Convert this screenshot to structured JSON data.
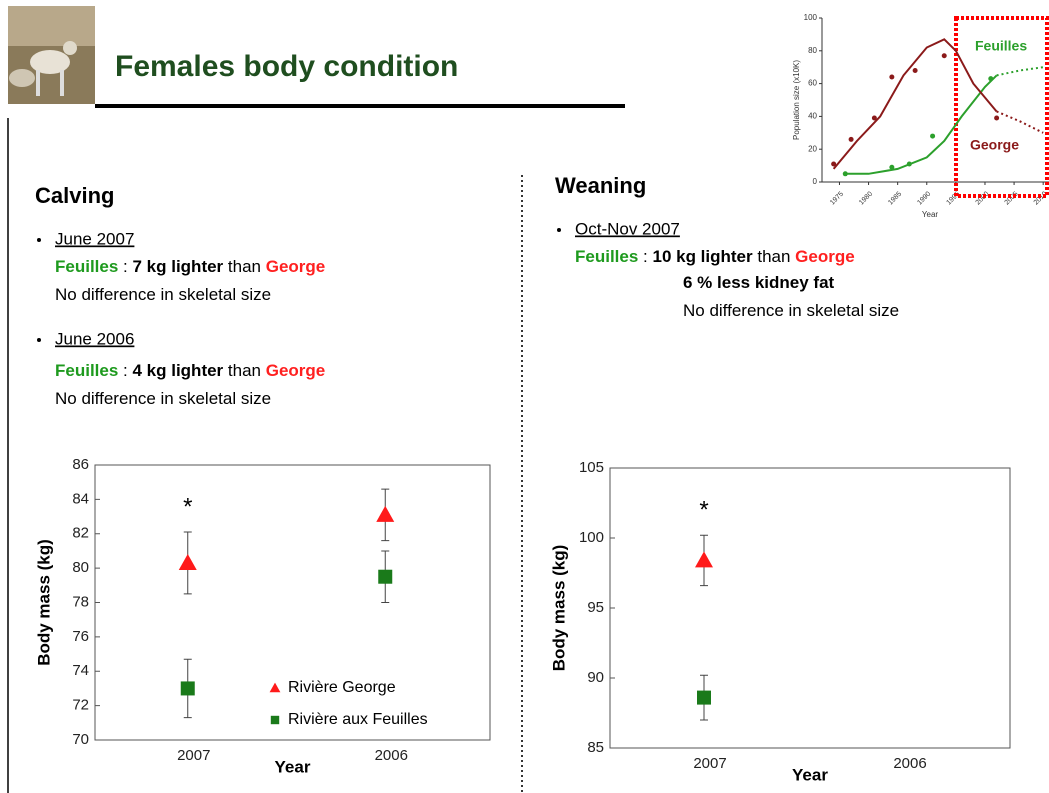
{
  "header": {
    "title": "Females body condition"
  },
  "calving": {
    "heading": "Calving",
    "items": [
      {
        "date": "June 2007",
        "lines": [
          [
            {
              "text": "Feuilles",
              "bold": true,
              "color": "#1e9a1e"
            },
            {
              "text": " : "
            },
            {
              "text": "7 kg lighter",
              "bold": true
            },
            {
              "text": " than "
            },
            {
              "text": "George",
              "bold": true,
              "color": "#ff2020"
            }
          ],
          [
            {
              "text": "No difference in skeletal size"
            }
          ]
        ]
      },
      {
        "date": "June 2006",
        "lines": [
          [
            {
              "text": "Feuilles",
              "bold": true,
              "color": "#1e9a1e"
            },
            {
              "text": " : "
            },
            {
              "text": "4 kg lighter",
              "bold": true
            },
            {
              "text": " than "
            },
            {
              "text": "George",
              "bold": true,
              "color": "#ff2020"
            }
          ],
          [
            {
              "text": "No difference in skeletal size"
            }
          ]
        ]
      }
    ]
  },
  "weaning": {
    "heading": "Weaning",
    "items": [
      {
        "date": "Oct-Nov 2007",
        "lines": [
          [
            {
              "text": "Feuilles",
              "bold": true,
              "color": "#1e9a1e"
            },
            {
              "text": " : "
            },
            {
              "text": "10 kg lighter",
              "bold": true
            },
            {
              "text": " than "
            },
            {
              "text": "George",
              "bold": true,
              "color": "#ff2020"
            }
          ],
          [
            {
              "text": "6 % less kidney fat",
              "bold": true
            }
          ],
          [
            {
              "text": "No difference in skeletal size"
            }
          ]
        ]
      }
    ]
  },
  "chart_data": [
    {
      "type": "line",
      "ylabel": "Population size (x10K)",
      "xlabel": "Year",
      "xlim": [
        1972,
        2011
      ],
      "ylim": [
        0,
        100
      ],
      "xticks": [
        1975,
        1980,
        1985,
        1990,
        1995,
        2000,
        2005,
        2010
      ],
      "yticks": [
        0,
        20,
        40,
        60,
        80,
        100
      ],
      "series": [
        {
          "name": "Feuilles",
          "color": "#2ca02c",
          "x": [
            1976,
            1980,
            1985,
            1990,
            1993,
            1996,
            2000,
            2002
          ],
          "values": [
            5,
            5,
            8,
            15,
            25,
            40,
            58,
            65
          ],
          "projection_x": [
            2002,
            2006,
            2010
          ],
          "projection": [
            65,
            68,
            70
          ],
          "points_x": [
            1976,
            1984,
            1987,
            1991,
            2001
          ],
          "points": [
            5,
            9,
            11,
            28,
            63
          ]
        },
        {
          "name": "George",
          "color": "#8b1a1a",
          "x": [
            1974,
            1978,
            1982,
            1986,
            1990,
            1993,
            1995,
            1998,
            2002
          ],
          "values": [
            8,
            25,
            40,
            65,
            82,
            87,
            80,
            60,
            43
          ],
          "projection_x": [
            2002,
            2006,
            2010
          ],
          "projection": [
            43,
            37,
            30
          ],
          "points_x": [
            1974,
            1977,
            1981,
            1984,
            1988,
            1993,
            2002
          ],
          "points": [
            11,
            26,
            39,
            64,
            68,
            77,
            39
          ]
        }
      ]
    },
    {
      "type": "errorbar",
      "ylabel": "Body mass (kg)",
      "xlabel": "Year",
      "categories": [
        "2007",
        "2006"
      ],
      "ylim": [
        70,
        86
      ],
      "yticks": [
        70,
        72,
        74,
        76,
        78,
        80,
        82,
        84,
        86
      ],
      "annotation": "*",
      "legend": "lower right",
      "series": [
        {
          "name": "Rivière George",
          "color": "#ff1a1a",
          "marker": "triangle",
          "values": [
            80.3,
            83.1
          ],
          "errors": [
            1.8,
            1.5
          ]
        },
        {
          "name": "Rivière aux Feuilles",
          "color": "#1a7a1a",
          "marker": "square",
          "values": [
            73.0,
            79.5
          ],
          "errors": [
            1.7,
            1.5
          ]
        }
      ]
    },
    {
      "type": "errorbar",
      "ylabel": "Body mass (kg)",
      "xlabel": "Year",
      "categories": [
        "2007",
        "2006"
      ],
      "ylim": [
        85,
        105
      ],
      "yticks": [
        85,
        90,
        95,
        100,
        105
      ],
      "annotation": "*",
      "series": [
        {
          "color": "#ff1a1a",
          "marker": "triangle",
          "values": [
            98.4,
            null
          ],
          "errors": [
            1.8,
            null
          ]
        },
        {
          "color": "#1a7a1a",
          "marker": "square",
          "values": [
            88.6,
            null
          ],
          "errors": [
            1.6,
            null
          ]
        }
      ]
    }
  ]
}
